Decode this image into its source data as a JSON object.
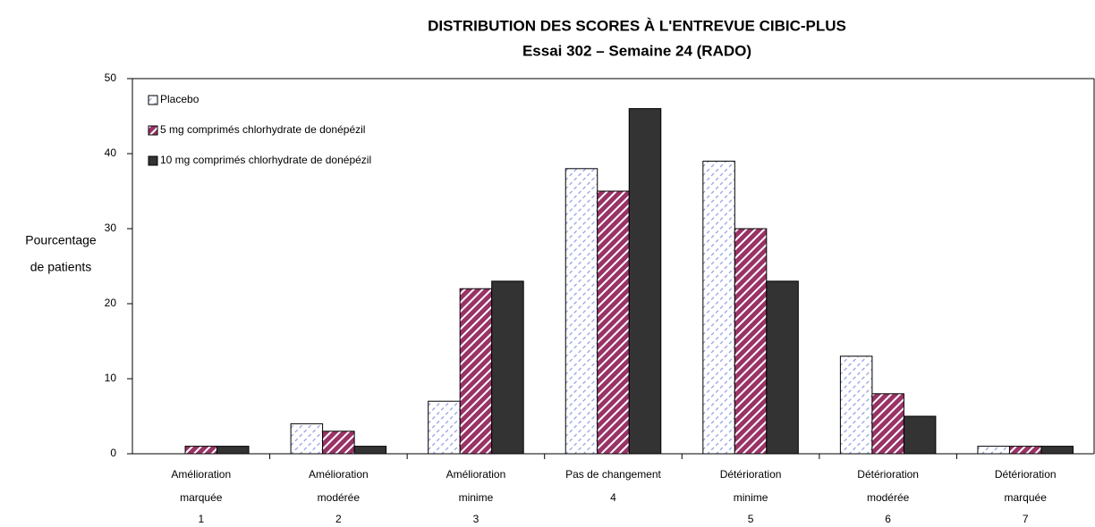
{
  "chart_data": {
    "type": "bar",
    "title": "DISTRIBUTION DES SCORES À L'ENTREVUE CIBIC-PLUS",
    "subtitle": "Essai 302 – Semaine 24 (RADO)",
    "y_label": [
      "Pourcentage",
      "de patients"
    ],
    "categories": [
      [
        "Amélioration",
        "marquée",
        "1"
      ],
      [
        "Amélioration",
        "modérée",
        "2"
      ],
      [
        "Amélioration",
        "minime",
        "3"
      ],
      [
        "Pas de changement",
        "4"
      ],
      [
        "Détérioration",
        "minime",
        "5"
      ],
      [
        "Détérioration",
        "modérée",
        "6"
      ],
      [
        "Détérioration",
        "marquée",
        "7"
      ]
    ],
    "series": [
      {
        "name": "Placebo",
        "color": "#8f9ae0",
        "pattern": "hatch-light",
        "values": [
          0,
          4,
          7,
          38,
          39,
          13,
          1
        ]
      },
      {
        "name": "5 mg comprimés chlorhydrate de donépézil",
        "color": "#993366",
        "pattern": "hatch-dark",
        "values": [
          1,
          3,
          22,
          35,
          30,
          8,
          1
        ]
      },
      {
        "name": "10 mg comprimés chlorhydrate de donépézil",
        "color": "#333333",
        "pattern": "solid",
        "values": [
          1,
          1,
          23,
          46,
          23,
          5,
          1
        ]
      }
    ],
    "ylim": [
      0,
      50
    ],
    "yticks": [
      0,
      10,
      20,
      30,
      40,
      50
    ],
    "grid": false,
    "legend": "upper left"
  }
}
